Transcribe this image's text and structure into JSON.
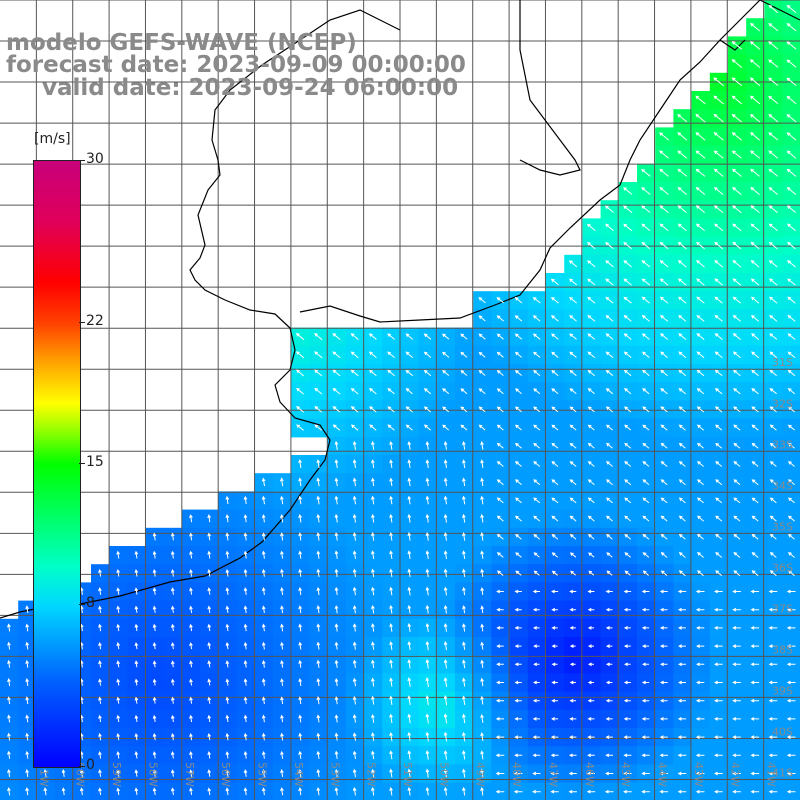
{
  "header": {
    "model": "modelo GEFS-WAVE (NCEP)",
    "forecast": "forecast date: 2023-09-09 00:00:00",
    "valid": "valid date: 2023-09-24 06:00:00"
  },
  "colorbar": {
    "unit": "[m/s]",
    "ticks": [
      {
        "value": 30,
        "label": "30"
      },
      {
        "value": 22,
        "label": "22"
      },
      {
        "value": 15,
        "label": "15"
      },
      {
        "value": 8,
        "label": "8"
      },
      {
        "value": 0,
        "label": "0"
      }
    ],
    "min": 0,
    "max": 30
  },
  "map_extent": {
    "lon_min": -62,
    "lon_max": -40,
    "lat_min": -41.5,
    "lat_max": -22
  },
  "lon_labels": [
    "61W",
    "60W",
    "59W",
    "58W",
    "57W",
    "56W",
    "55W",
    "54W",
    "53W",
    "52W",
    "51W",
    "50W",
    "49W",
    "48W",
    "47W",
    "46W",
    "45W",
    "44W",
    "43W",
    "42W",
    "41W"
  ],
  "lat_labels": [
    "31S",
    "32S",
    "33S",
    "34S",
    "35S",
    "36S",
    "37S",
    "38S",
    "39S",
    "40S",
    "41S"
  ],
  "colors": {
    "land": "#ffffff",
    "grid": "#555555",
    "coast": "#000000",
    "arrow": "#ffffff",
    "label": "#8a8a8a"
  }
}
